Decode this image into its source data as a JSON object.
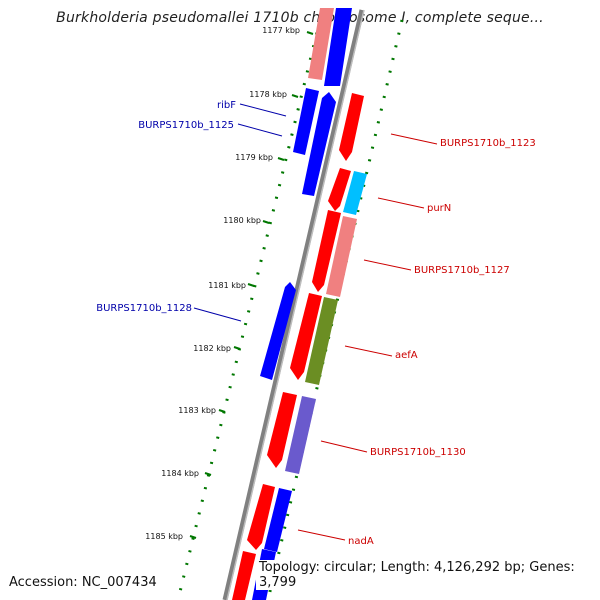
{
  "title": "Burkholderia pseudomallei 1710b chromosome I, complete seque...",
  "accession_label": "Accession: NC_007434",
  "topology_label": "Topology: circular; Length: 4,126,292 bp; Genes: 3,799",
  "ticks": [
    "1177 kbp",
    "1178 kbp",
    "1179 kbp",
    "1180 kbp",
    "1181 kbp",
    "1182 kbp",
    "1183 kbp",
    "1184 kbp",
    "1185 kbp"
  ],
  "gene_labels_left": [
    "ribF",
    "BURPS1710b_1125",
    "BURPS1710b_1128"
  ],
  "gene_labels_right": [
    "BURPS1710b_1123",
    "purN",
    "BURPS1710b_1127",
    "aefA",
    "BURPS1710b_1130",
    "nadA"
  ],
  "colors": {
    "forward": "#0000ff",
    "reverse": "#ff0000",
    "reverse_light": "#f08080",
    "forward_light": "#f08080",
    "purN": "#00bfff",
    "aefA": "#6b8e23",
    "BURPS1710b_1130": "#6a5acd",
    "backbone": "#808080",
    "tick": "#007700",
    "label_left": "#0000aa",
    "label_right": "#cc0000"
  }
}
